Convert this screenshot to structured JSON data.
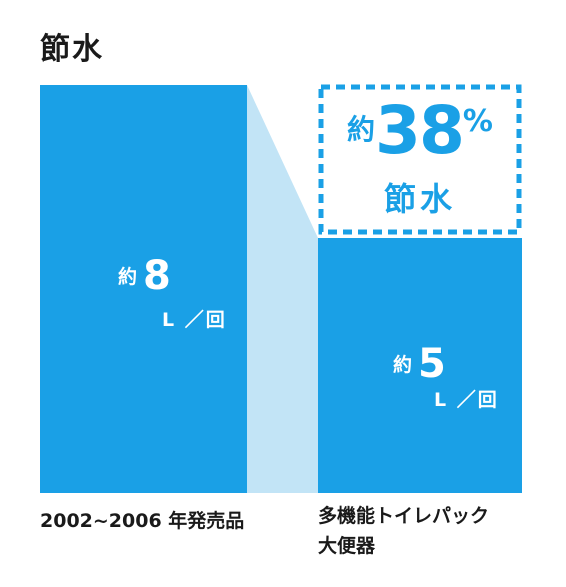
{
  "chart_data": {
    "type": "bar",
    "title": "節水",
    "categories": [
      "2002~2006 年発売品",
      "多機能トイレパック\n大便器"
    ],
    "values": [
      8,
      5
    ],
    "value_prefix": "約",
    "unit": "L ／回",
    "ylim": [
      0,
      8
    ],
    "grid": false,
    "annotation": {
      "prefix": "約",
      "value": "38",
      "suffix": "%",
      "label": "節水"
    }
  },
  "colors": {
    "bar": "#1aa0e6",
    "connector": "#c2e4f6",
    "badge_border": "#1aa0e6",
    "text": "#1a1a1a"
  }
}
